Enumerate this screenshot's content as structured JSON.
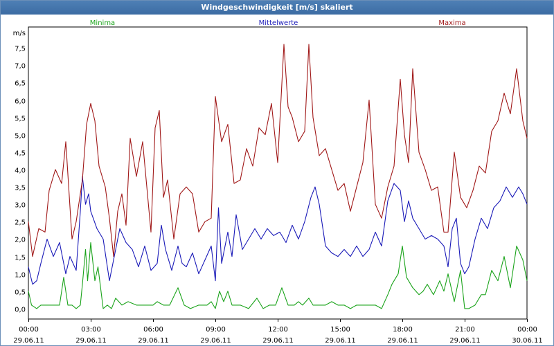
{
  "window": {
    "title": "Windgeschwindigkeit [m/s] skaliert"
  },
  "chart_data": {
    "type": "line",
    "title": "Windgeschwindigkeit [m/s] skaliert",
    "ylabel": "m/s",
    "xlabel": "",
    "ylim": [
      -0.3,
      8.1
    ],
    "xlim": [
      0,
      24
    ],
    "grid": true,
    "legend_position": "top",
    "yticks": [
      0,
      0.5,
      1,
      1.5,
      2,
      2.5,
      3,
      3.5,
      4,
      4.5,
      5,
      5.5,
      6,
      6.5,
      7,
      7.5
    ],
    "ytick_labels": [
      "0,0",
      "0,5",
      "1,0",
      "1,5",
      "2,0",
      "2,5",
      "3,0",
      "3,5",
      "4,0",
      "4,5",
      "5,0",
      "5,5",
      "6,0",
      "6,5",
      "7,0",
      "7,5"
    ],
    "xticks": [
      0,
      3,
      6,
      9,
      12,
      15,
      18,
      21,
      24
    ],
    "xtick_labels": [
      [
        "00:00",
        "29.06.11"
      ],
      [
        "03:00",
        "29.06.11"
      ],
      [
        "06:00",
        "29.06.11"
      ],
      [
        "09:00",
        "29.06.11"
      ],
      [
        "12:00",
        "29.06.11"
      ],
      [
        "15:00",
        "29.06.11"
      ],
      [
        "18:00",
        "29.06.11"
      ],
      [
        "21:00",
        "29.06.11"
      ],
      [
        "00:00",
        "30.06.11"
      ]
    ],
    "series": [
      {
        "name": "Minima",
        "color": "#1aa31a",
        "x": [
          0,
          0.15,
          0.4,
          0.6,
          1.5,
          1.7,
          1.9,
          2.1,
          2.3,
          2.5,
          2.6,
          2.75,
          2.85,
          3.0,
          3.2,
          3.35,
          3.6,
          3.8,
          4.0,
          4.2,
          4.5,
          4.8,
          5.2,
          5.6,
          6.0,
          6.2,
          6.5,
          6.8,
          7.2,
          7.5,
          7.8,
          8.2,
          8.6,
          8.8,
          9.0,
          9.2,
          9.4,
          9.6,
          9.8,
          10.2,
          10.6,
          11.0,
          11.3,
          11.6,
          11.9,
          12.2,
          12.5,
          12.8,
          13.0,
          13.2,
          13.5,
          13.7,
          14.0,
          14.3,
          14.6,
          14.9,
          15.2,
          15.5,
          15.8,
          16.1,
          16.4,
          16.7,
          17.0,
          17.3,
          17.5,
          17.8,
          18.0,
          18.2,
          18.5,
          18.8,
          19.0,
          19.2,
          19.5,
          19.8,
          20.0,
          20.2,
          20.5,
          20.8,
          21.0,
          21.2,
          21.5,
          21.8,
          22.0,
          22.3,
          22.6,
          22.9,
          23.2,
          23.5,
          23.8,
          24.0
        ],
        "y": [
          0.5,
          0.1,
          0.0,
          0.1,
          0.1,
          0.9,
          0.1,
          0.1,
          0.0,
          0.1,
          0.7,
          1.7,
          0.8,
          1.9,
          0.8,
          1.2,
          0.0,
          0.1,
          0.0,
          0.3,
          0.1,
          0.2,
          0.1,
          0.1,
          0.1,
          0.2,
          0.1,
          0.1,
          0.6,
          0.1,
          0.0,
          0.1,
          0.1,
          0.2,
          0.0,
          0.5,
          0.2,
          0.5,
          0.1,
          0.1,
          0.0,
          0.3,
          0.0,
          0.1,
          0.1,
          0.6,
          0.1,
          0.1,
          0.2,
          0.1,
          0.3,
          0.1,
          0.1,
          0.1,
          0.2,
          0.1,
          0.1,
          0.0,
          0.1,
          0.1,
          0.1,
          0.1,
          0.0,
          0.4,
          0.7,
          1.0,
          1.8,
          0.9,
          0.6,
          0.4,
          0.5,
          0.7,
          0.4,
          0.8,
          0.5,
          1.0,
          0.2,
          1.1,
          0.0,
          0.0,
          0.1,
          0.4,
          0.4,
          1.1,
          0.8,
          1.5,
          0.6,
          1.8,
          1.4,
          0.8
        ]
      },
      {
        "name": "Mittelwerte",
        "color": "#1a1ab8",
        "x": [
          0,
          0.2,
          0.4,
          0.6,
          0.9,
          1.2,
          1.5,
          1.8,
          2.0,
          2.3,
          2.5,
          2.6,
          2.75,
          2.9,
          3.0,
          3.3,
          3.6,
          3.9,
          4.1,
          4.4,
          4.7,
          5.0,
          5.3,
          5.6,
          5.9,
          6.2,
          6.4,
          6.6,
          6.9,
          7.2,
          7.4,
          7.6,
          7.9,
          8.2,
          8.5,
          8.8,
          9.0,
          9.15,
          9.3,
          9.6,
          9.8,
          10.0,
          10.3,
          10.6,
          10.9,
          11.2,
          11.5,
          11.8,
          12.1,
          12.4,
          12.7,
          13.0,
          13.3,
          13.6,
          13.8,
          14.0,
          14.3,
          14.6,
          14.9,
          15.2,
          15.5,
          15.8,
          16.1,
          16.4,
          16.7,
          17.0,
          17.3,
          17.6,
          17.9,
          18.1,
          18.3,
          18.5,
          18.8,
          19.1,
          19.4,
          19.7,
          20.0,
          20.2,
          20.4,
          20.6,
          20.8,
          21.0,
          21.2,
          21.5,
          21.8,
          22.1,
          22.4,
          22.7,
          23.0,
          23.3,
          23.6,
          23.8,
          24.0
        ],
        "y": [
          1.2,
          0.7,
          0.8,
          1.3,
          2.0,
          1.5,
          1.9,
          1.0,
          1.5,
          1.1,
          2.8,
          3.8,
          3.0,
          3.3,
          2.8,
          2.3,
          2.0,
          0.8,
          1.4,
          2.3,
          1.9,
          1.7,
          1.2,
          1.8,
          1.1,
          1.3,
          2.4,
          1.7,
          1.1,
          1.8,
          1.3,
          1.2,
          1.6,
          1.0,
          1.4,
          1.8,
          0.8,
          2.9,
          1.3,
          2.2,
          1.5,
          2.7,
          1.7,
          2.0,
          2.3,
          2.0,
          2.3,
          2.1,
          2.2,
          1.9,
          2.4,
          2.0,
          2.5,
          3.2,
          3.5,
          3.0,
          1.8,
          1.6,
          1.5,
          1.7,
          1.5,
          1.8,
          1.5,
          1.7,
          2.2,
          1.8,
          3.1,
          3.6,
          3.4,
          2.5,
          3.1,
          2.6,
          2.3,
          2.0,
          2.1,
          2.0,
          1.8,
          1.2,
          2.3,
          2.6,
          1.3,
          1.0,
          1.2,
          2.0,
          2.6,
          2.3,
          2.9,
          3.1,
          3.5,
          3.2,
          3.5,
          3.3,
          3.0
        ]
      },
      {
        "name": "Maxima",
        "color": "#a01818",
        "x": [
          0,
          0.2,
          0.5,
          0.8,
          1.0,
          1.3,
          1.6,
          1.8,
          2.1,
          2.3,
          2.6,
          2.8,
          3.0,
          3.2,
          3.4,
          3.7,
          3.9,
          4.1,
          4.3,
          4.5,
          4.7,
          4.9,
          5.2,
          5.5,
          5.7,
          5.9,
          6.1,
          6.3,
          6.5,
          6.7,
          7.0,
          7.3,
          7.6,
          7.9,
          8.2,
          8.5,
          8.8,
          9.0,
          9.3,
          9.6,
          9.9,
          10.2,
          10.5,
          10.8,
          11.1,
          11.4,
          11.7,
          12.0,
          12.3,
          12.5,
          12.7,
          13.0,
          13.3,
          13.5,
          13.7,
          14.0,
          14.3,
          14.6,
          14.9,
          15.2,
          15.5,
          15.8,
          16.1,
          16.4,
          16.7,
          17.0,
          17.3,
          17.6,
          17.9,
          18.1,
          18.3,
          18.5,
          18.8,
          19.1,
          19.4,
          19.7,
          20.0,
          20.2,
          20.5,
          20.8,
          21.1,
          21.4,
          21.7,
          22.0,
          22.3,
          22.6,
          22.9,
          23.2,
          23.5,
          23.8,
          24.0
        ],
        "y": [
          2.5,
          1.5,
          2.3,
          2.2,
          3.4,
          4.0,
          3.6,
          4.8,
          2.0,
          2.5,
          3.7,
          5.3,
          5.9,
          5.4,
          4.1,
          3.5,
          2.6,
          1.5,
          2.8,
          3.3,
          2.4,
          4.9,
          3.8,
          4.8,
          3.5,
          2.2,
          5.2,
          5.7,
          3.2,
          3.7,
          2.0,
          3.3,
          3.5,
          3.3,
          2.2,
          2.5,
          2.6,
          6.1,
          4.8,
          5.3,
          3.6,
          3.7,
          4.6,
          4.1,
          5.2,
          5.0,
          5.9,
          4.2,
          7.6,
          5.8,
          5.5,
          4.8,
          5.1,
          7.6,
          5.5,
          4.4,
          4.6,
          4.0,
          3.4,
          3.6,
          2.8,
          3.5,
          4.2,
          6.0,
          3.0,
          2.6,
          3.5,
          4.1,
          6.6,
          5.0,
          4.2,
          6.9,
          4.5,
          4.0,
          3.4,
          3.5,
          2.2,
          2.2,
          4.5,
          3.2,
          2.9,
          3.4,
          4.1,
          3.9,
          5.1,
          5.4,
          6.2,
          5.6,
          6.9,
          5.4,
          4.9
        ]
      }
    ]
  }
}
